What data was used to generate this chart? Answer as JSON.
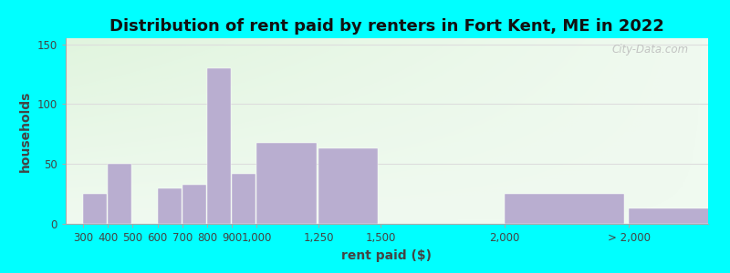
{
  "title": "Distribution of rent paid by renters in Fort Kent, ME in 2022",
  "xlabel": "rent paid ($)",
  "ylabel": "households",
  "bar_labels": [
    "300",
    "400",
    "500",
    "600",
    "700",
    "800",
    "900",
    "1,000",
    "1,250",
    "1,500",
    "2,000",
    "> 2,000"
  ],
  "bar_positions": [
    300,
    400,
    500,
    600,
    700,
    800,
    900,
    1000,
    1250,
    1500,
    2000,
    2500
  ],
  "bar_widths": [
    100,
    100,
    100,
    100,
    100,
    100,
    100,
    250,
    250,
    500,
    500,
    500
  ],
  "bar_heights": [
    25,
    50,
    0,
    30,
    33,
    130,
    42,
    68,
    63,
    0,
    25,
    13
  ],
  "bar_color": "#b9aed0",
  "bar_edge_color": "#b9aed0",
  "ylim": [
    0,
    155
  ],
  "yticks": [
    0,
    50,
    100,
    150
  ],
  "background_top_color": "#d8f0d0",
  "background_bottom_color": "#f5fff5",
  "outer_bg": "#00ffff",
  "title_fontsize": 13,
  "axis_label_fontsize": 10,
  "tick_fontsize": 8.5,
  "watermark": "City-Data.com",
  "grid_color": "#dddddd",
  "xlim_left": 230,
  "xlim_right": 2820
}
